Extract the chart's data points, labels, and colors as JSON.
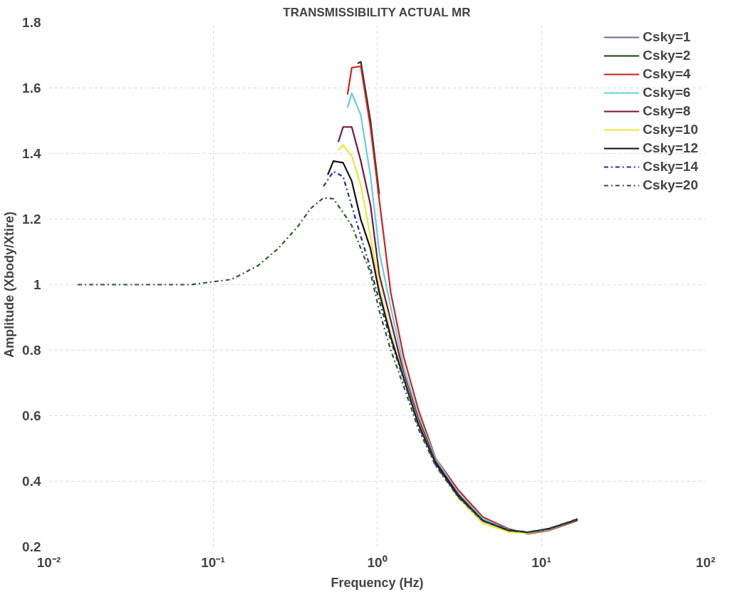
{
  "chart_data": {
    "type": "line",
    "title": "TRANSMISSIBILITY ACTUAL MR",
    "xlabel": "Frequency (Hz)",
    "ylabel": "Amplitude (Xbody/Xtire)",
    "log": "x",
    "xlim": [
      0.01,
      100
    ],
    "xticks": [
      {
        "value": 0.01,
        "label": "10⁻²"
      },
      {
        "value": 0.1,
        "label": "10⁻¹"
      },
      {
        "value": 1,
        "label": "10⁰"
      },
      {
        "value": 10,
        "label": "10¹"
      },
      {
        "value": 100,
        "label": "10²"
      }
    ],
    "ylim": [
      0.2,
      1.8
    ],
    "yticks": [
      0.2,
      0.4,
      0.6,
      0.8,
      1,
      1.2,
      1.4,
      1.6,
      1.8
    ],
    "grid": true,
    "legend": "top right",
    "x": [
      0.015,
      0.073,
      0.13,
      0.188,
      0.248,
      0.327,
      0.393,
      0.471,
      0.541,
      0.62,
      0.7,
      0.795,
      0.91,
      1.03,
      1.21,
      1.45,
      1.78,
      2.27,
      3.11,
      4.4,
      6.3,
      8.3,
      11.1,
      16.6
    ],
    "series": [
      {
        "name": "Csky=1",
        "color": "#6b6f8f",
        "line_style": "solid",
        "values": [
          null,
          null,
          null,
          null,
          null,
          null,
          null,
          null,
          null,
          null,
          null,
          null,
          null,
          null,
          null,
          null,
          null,
          null,
          null,
          null,
          null,
          null,
          null,
          null
        ]
      },
      {
        "name": "Csky=2",
        "color": "#1a3d1a",
        "line_style": "solid",
        "x": [
          0.76,
          0.795,
          0.91,
          1.03
        ],
        "values": [
          1.675,
          1.68,
          1.5,
          1.275
        ]
      },
      {
        "name": "Csky=4",
        "color": "#d42020",
        "line_style": "solid",
        "x": [
          0.66,
          0.7,
          0.795,
          0.91,
          1.03,
          1.21,
          1.45,
          1.78,
          2.27,
          3.11,
          4.4,
          6.3,
          8.3,
          11.1,
          16.6
        ],
        "values": [
          1.58,
          1.662,
          1.666,
          1.481,
          1.258,
          0.975,
          0.78,
          0.619,
          0.47,
          0.374,
          0.291,
          0.255,
          0.24,
          0.25,
          0.28
        ]
      },
      {
        "name": "Csky=6",
        "color": "#5fd0e6",
        "line_style": "solid",
        "x": [
          0.66,
          0.7,
          0.795,
          0.91,
          1.03,
          1.21,
          1.45,
          1.78,
          2.27,
          3.11,
          4.4,
          6.3,
          8.3,
          11.1,
          16.6
        ],
        "values": [
          1.54,
          1.584,
          1.517,
          1.332,
          1.1,
          0.93,
          0.75,
          0.6,
          0.468,
          0.365,
          0.285,
          0.252,
          0.242,
          0.252,
          0.282
        ]
      },
      {
        "name": "Csky=8",
        "color": "#7a1538",
        "line_style": "solid",
        "x": [
          0.58,
          0.62,
          0.7,
          0.795,
          0.91,
          1.03,
          1.21,
          1.45,
          1.78,
          2.27,
          3.11,
          4.4,
          6.3,
          8.3,
          11.1,
          16.6
        ],
        "values": [
          1.435,
          1.481,
          1.481,
          1.377,
          1.243,
          1.03,
          0.89,
          0.73,
          0.59,
          0.46,
          0.36,
          0.28,
          0.25,
          0.243,
          0.254,
          0.283
        ]
      },
      {
        "name": "Csky=10",
        "color": "#eaea30",
        "line_style": "solid",
        "x": [
          0.58,
          0.62,
          0.7,
          0.795,
          0.91,
          1.03,
          1.21,
          1.45,
          1.78,
          2.27,
          3.11,
          4.4,
          6.3,
          8.3,
          11.1,
          16.6
        ],
        "values": [
          1.41,
          1.426,
          1.392,
          1.303,
          1.147,
          0.99,
          0.85,
          0.72,
          0.58,
          0.455,
          0.35,
          0.272,
          0.245,
          0.242,
          0.254,
          0.283
        ]
      },
      {
        "name": "Csky=12",
        "color": "#111111",
        "line_style": "solid",
        "x": [
          0.5,
          0.541,
          0.62,
          0.7,
          0.795,
          0.91,
          1.03,
          1.21,
          1.45,
          1.78,
          2.27,
          3.11,
          4.4,
          6.3,
          8.3,
          11.1,
          16.6
        ],
        "values": [
          1.335,
          1.377,
          1.372,
          1.316,
          1.198,
          1.11,
          0.975,
          0.84,
          0.715,
          0.575,
          0.455,
          0.355,
          0.28,
          0.25,
          0.244,
          0.255,
          0.283
        ]
      },
      {
        "name": "Csky=14",
        "color": "#1a2ea0",
        "line_style": "dashdot",
        "x": [
          0.471,
          0.541,
          0.62,
          0.7,
          0.795,
          0.91,
          1.03,
          1.21,
          1.45,
          1.78,
          2.27,
          3.11,
          4.4,
          6.3,
          8.3,
          11.1,
          16.6
        ],
        "values": [
          1.3,
          1.345,
          1.33,
          1.24,
          1.147,
          1.05,
          0.95,
          0.83,
          0.71,
          0.57,
          0.45,
          0.355,
          0.28,
          0.252,
          0.245,
          0.255,
          0.285
        ]
      },
      {
        "name": "Csky=20",
        "color": "#2a5a2a",
        "line_style": "dashdot",
        "values": [
          1.0,
          1.0,
          1.016,
          1.058,
          1.109,
          1.176,
          1.232,
          1.265,
          1.262,
          1.22,
          1.18,
          1.11,
          1.036,
          0.92,
          0.8,
          0.69,
          0.56,
          0.447,
          0.352,
          0.278,
          0.251,
          0.245,
          0.256,
          0.285
        ]
      }
    ]
  }
}
